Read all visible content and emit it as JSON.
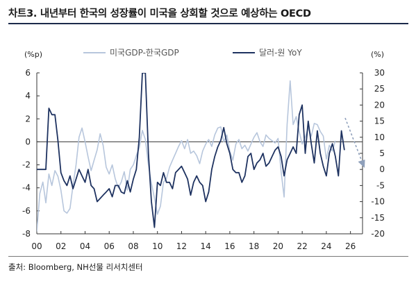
{
  "header": {
    "title": "차트3. 내년부터 한국의 성장률이 미국을 상회할 것으로 예상하는 OECD"
  },
  "footer": {
    "source": "출처: Bloomberg, NH선물 리서치센터"
  },
  "colors": {
    "gdp_gap": "#b7c6dc",
    "usdkrw": "#1e3260",
    "forecast_arrow": "#8fa0bb",
    "title_rule": "#1c2a4a"
  },
  "chart_data": {
    "type": "line",
    "title": "",
    "left_axis_unit": "(%p)",
    "right_axis_unit": "(%)",
    "xlabels": [
      "00",
      "02",
      "04",
      "06",
      "08",
      "10",
      "12",
      "14",
      "16",
      "18",
      "20",
      "22",
      "24",
      "26"
    ],
    "xlim": [
      2000,
      2027
    ],
    "ylim_left": [
      -8,
      6
    ],
    "yticks_left": [
      "6",
      "4",
      "2",
      "0",
      "-2",
      "-4",
      "-6",
      "-8"
    ],
    "ylim_right": [
      -20,
      30
    ],
    "yticks_right": [
      "30",
      "25",
      "20",
      "15",
      "10",
      "5",
      "0",
      "-5",
      "-10",
      "-15",
      "-20"
    ],
    "grid": false,
    "legend_position": "top",
    "series": [
      {
        "name": "미국GDP-한국GDP",
        "axis": "left",
        "x": [
          2000.0,
          2000.25,
          2000.5,
          2000.75,
          2001.0,
          2001.25,
          2001.5,
          2001.75,
          2002.0,
          2002.25,
          2002.5,
          2002.75,
          2003.0,
          2003.25,
          2003.5,
          2003.75,
          2004.0,
          2004.25,
          2004.5,
          2004.75,
          2005.0,
          2005.25,
          2005.5,
          2005.75,
          2006.0,
          2006.25,
          2006.5,
          2006.75,
          2007.0,
          2007.25,
          2007.5,
          2007.75,
          2008.0,
          2008.25,
          2008.5,
          2008.75,
          2009.0,
          2009.25,
          2009.5,
          2009.75,
          2010.0,
          2010.25,
          2010.5,
          2010.75,
          2011.0,
          2011.25,
          2011.5,
          2011.75,
          2012.0,
          2012.25,
          2012.5,
          2012.75,
          2013.0,
          2013.25,
          2013.5,
          2013.75,
          2014.0,
          2014.25,
          2014.5,
          2014.75,
          2015.0,
          2015.25,
          2015.5,
          2015.75,
          2016.0,
          2016.25,
          2016.5,
          2016.75,
          2017.0,
          2017.25,
          2017.5,
          2017.75,
          2018.0,
          2018.25,
          2018.5,
          2018.75,
          2019.0,
          2019.25,
          2019.5,
          2019.75,
          2020.0,
          2020.25,
          2020.5,
          2020.75,
          2021.0,
          2021.25,
          2021.5,
          2021.75,
          2022.0,
          2022.25,
          2022.5,
          2022.75,
          2023.0,
          2023.25,
          2023.5,
          2023.75,
          2024.0,
          2024.25,
          2024.5,
          2024.75
        ],
        "y": [
          -7.8,
          -4.5,
          -3.5,
          -5.3,
          -2.8,
          -3.8,
          -2.5,
          -3.0,
          -4.2,
          -6.0,
          -6.2,
          -5.8,
          -3.8,
          -2.0,
          0.4,
          1.2,
          0.0,
          -1.3,
          -2.5,
          -1.6,
          -0.7,
          0.7,
          -0.3,
          -2.2,
          -2.8,
          -2.0,
          -3.2,
          -4.0,
          -3.5,
          -2.6,
          -4.2,
          -2.4,
          -2.0,
          -1.2,
          -0.5,
          1.0,
          0.2,
          -2.0,
          -3.6,
          -4.9,
          -6.3,
          -5.6,
          -3.5,
          -3.2,
          -2.2,
          -1.6,
          -1.0,
          -0.4,
          0.1,
          -0.6,
          0.2,
          -1.0,
          -0.8,
          -1.2,
          -1.9,
          -0.8,
          -0.2,
          0.2,
          -0.4,
          0.6,
          1.2,
          1.3,
          0.0,
          0.6,
          -0.8,
          -1.6,
          -0.2,
          0.2,
          -0.6,
          -0.3,
          -0.8,
          -0.2,
          0.4,
          0.8,
          0.0,
          -0.4,
          0.6,
          0.3,
          0.1,
          -0.1,
          0.3,
          -2.6,
          -4.8,
          1.5,
          5.3,
          1.5,
          2.2,
          0.9,
          -0.2,
          0.4,
          1.2,
          0.5,
          1.6,
          1.5,
          0.9,
          0.5,
          -1.5,
          -0.3,
          -0.8,
          0.1
        ]
      },
      {
        "name": "달러-원 YoY",
        "axis": "right",
        "x": [
          2000.0,
          2000.25,
          2000.5,
          2000.75,
          2001.0,
          2001.25,
          2001.5,
          2001.75,
          2002.0,
          2002.25,
          2002.5,
          2002.75,
          2003.0,
          2003.25,
          2003.5,
          2003.75,
          2004.0,
          2004.25,
          2004.5,
          2004.75,
          2005.0,
          2005.25,
          2005.5,
          2005.75,
          2006.0,
          2006.25,
          2006.5,
          2006.75,
          2007.0,
          2007.25,
          2007.5,
          2007.75,
          2008.0,
          2008.25,
          2008.5,
          2008.75,
          2009.0,
          2009.25,
          2009.5,
          2009.75,
          2010.0,
          2010.25,
          2010.5,
          2010.75,
          2011.0,
          2011.25,
          2011.5,
          2011.75,
          2012.0,
          2012.25,
          2012.5,
          2012.75,
          2013.0,
          2013.25,
          2013.5,
          2013.75,
          2014.0,
          2014.25,
          2014.5,
          2014.75,
          2015.0,
          2015.25,
          2015.5,
          2015.75,
          2016.0,
          2016.25,
          2016.5,
          2016.75,
          2017.0,
          2017.25,
          2017.5,
          2017.75,
          2018.0,
          2018.25,
          2018.5,
          2018.75,
          2019.0,
          2019.25,
          2019.5,
          2019.75,
          2020.0,
          2020.25,
          2020.5,
          2020.75,
          2021.0,
          2021.25,
          2021.5,
          2021.75,
          2022.0,
          2022.25,
          2022.5,
          2022.75,
          2023.0,
          2023.25,
          2023.5,
          2023.75,
          2024.0,
          2024.25,
          2024.5,
          2024.75,
          2025.0,
          2025.25,
          2025.5
        ],
        "y": [
          0,
          0,
          0,
          0,
          19,
          17,
          17,
          9,
          -1,
          -3.5,
          -5,
          -2,
          -6,
          -3,
          0,
          -2,
          -4,
          0,
          -5,
          -6,
          -10,
          -9,
          -8,
          -7,
          -6,
          -8.5,
          -5,
          -5,
          -7,
          -7.5,
          -3.5,
          -7,
          -3,
          0,
          10,
          30,
          30,
          5,
          -10,
          -18,
          -4,
          -5,
          -1,
          -4,
          -4,
          -6,
          -1,
          0,
          1,
          -1,
          -3,
          -8,
          -4,
          -2,
          -4,
          -5,
          -10,
          -7,
          0,
          4,
          7,
          9,
          13,
          8,
          5,
          0,
          -1,
          -1,
          -4,
          -2,
          4,
          5,
          0,
          2,
          3,
          5,
          1,
          2,
          4,
          6,
          7,
          4,
          -2,
          3,
          5,
          7,
          5,
          17,
          20,
          5,
          15,
          8,
          2,
          12,
          5,
          1,
          -2,
          5,
          8,
          4,
          -2,
          12,
          6
        ]
      }
    ]
  }
}
